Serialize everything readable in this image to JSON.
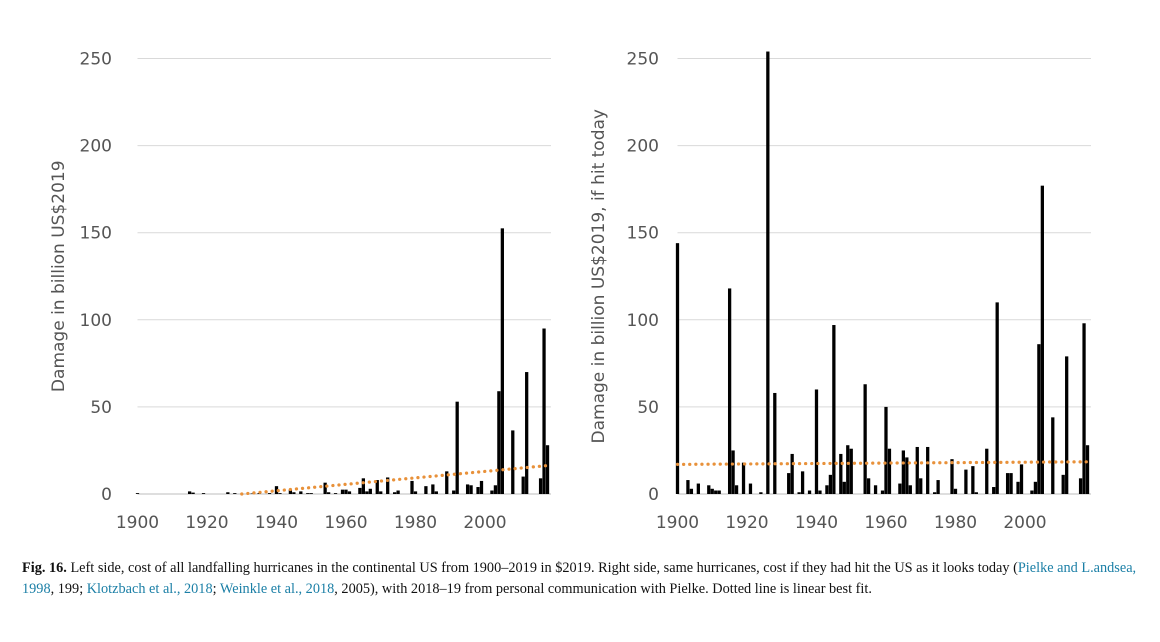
{
  "chart_data": [
    {
      "type": "bar",
      "ylabel": "Damage in billion US$2019",
      "ylim": [
        0,
        250
      ],
      "yticks": [
        0,
        50,
        100,
        150,
        200,
        250
      ],
      "xlim": [
        1900,
        2019
      ],
      "xticks": [
        1900,
        1920,
        1940,
        1960,
        1980,
        2000
      ],
      "grid": "horizontal",
      "bar_color": "#000000",
      "trend": {
        "style": "dotted",
        "color": "#e8913a",
        "points": [
          [
            1930,
            0
          ],
          [
            2019,
            16.5
          ]
        ]
      },
      "x": [
        1900,
        1915,
        1916,
        1919,
        1926,
        1928,
        1933,
        1935,
        1938,
        1940,
        1941,
        1944,
        1945,
        1947,
        1949,
        1950,
        1954,
        1955,
        1957,
        1959,
        1960,
        1961,
        1964,
        1965,
        1966,
        1967,
        1969,
        1970,
        1972,
        1974,
        1975,
        1979,
        1980,
        1983,
        1985,
        1986,
        1989,
        1991,
        1992,
        1995,
        1996,
        1998,
        1999,
        2002,
        2003,
        2004,
        2005,
        2008,
        2011,
        2012,
        2016,
        2017,
        2018
      ],
      "values": [
        0.5,
        1.5,
        0.8,
        0.5,
        1.0,
        0.5,
        0.3,
        0.5,
        0.5,
        4.5,
        0.5,
        2.5,
        1.0,
        1.5,
        0.5,
        0.5,
        6.5,
        1.0,
        0.5,
        2.5,
        2.5,
        1.5,
        3.5,
        9.0,
        1.5,
        3.0,
        8.0,
        1.5,
        9.5,
        1.0,
        2.0,
        7.5,
        1.5,
        4.5,
        5.5,
        1.5,
        13.0,
        2.0,
        53.0,
        5.5,
        5.0,
        4.0,
        7.5,
        2.0,
        5.0,
        59.0,
        152.5,
        36.5,
        10.0,
        70.0,
        9.0,
        95.0,
        28.0
      ]
    },
    {
      "type": "bar",
      "ylabel": "Damage in billion US$2019, if hit today",
      "ylim": [
        0,
        250
      ],
      "yticks": [
        0,
        50,
        100,
        150,
        200,
        250
      ],
      "xlim": [
        1900,
        2019
      ],
      "xticks": [
        1900,
        1920,
        1940,
        1960,
        1980,
        2000
      ],
      "grid": "horizontal",
      "bar_color": "#000000",
      "trend": {
        "style": "dotted",
        "color": "#e8913a",
        "points": [
          [
            1900,
            17
          ],
          [
            2019,
            18.5
          ]
        ]
      },
      "x": [
        1900,
        1903,
        1904,
        1906,
        1909,
        1910,
        1911,
        1912,
        1915,
        1916,
        1917,
        1919,
        1921,
        1924,
        1926,
        1928,
        1932,
        1933,
        1935,
        1936,
        1938,
        1940,
        1941,
        1943,
        1944,
        1945,
        1947,
        1948,
        1949,
        1950,
        1954,
        1955,
        1957,
        1959,
        1960,
        1961,
        1964,
        1965,
        1966,
        1967,
        1969,
        1970,
        1972,
        1974,
        1975,
        1979,
        1980,
        1983,
        1985,
        1986,
        1989,
        1991,
        1992,
        1995,
        1996,
        1998,
        1999,
        2002,
        2003,
        2004,
        2005,
        2008,
        2011,
        2012,
        2016,
        2017,
        2018
      ],
      "values": [
        144,
        8,
        3,
        6,
        5,
        3,
        2,
        2,
        118,
        25,
        5,
        18,
        6,
        1,
        254,
        58,
        12,
        23,
        1,
        13,
        2,
        60,
        2,
        5,
        11,
        97,
        23,
        7,
        28,
        26,
        63,
        9,
        5,
        2,
        50,
        26,
        6,
        25,
        21,
        5,
        27,
        9,
        27,
        1,
        8,
        20,
        3,
        14,
        16,
        1,
        26,
        4,
        110,
        12,
        12,
        7,
        17,
        2,
        7,
        86,
        177,
        44,
        11,
        79,
        9,
        98,
        28
      ]
    }
  ],
  "caption": {
    "label": "Fig. 16.",
    "text1": " Left side, cost of all landfalling hurricanes in the continental US from 1900–2019 in $2019. Right side, same hurricanes, cost if they had hit the US as it looks today (",
    "ref1": "Pielke and L.andsea, 1998",
    "text2": ", 199; ",
    "ref2": "Klotzbach et al., 2018",
    "text3": "; ",
    "ref3": "Weinkle et al., 2018",
    "text4": ", 2005), with 2018–19 from personal communication with Pielke. Dotted line is linear best fit."
  }
}
